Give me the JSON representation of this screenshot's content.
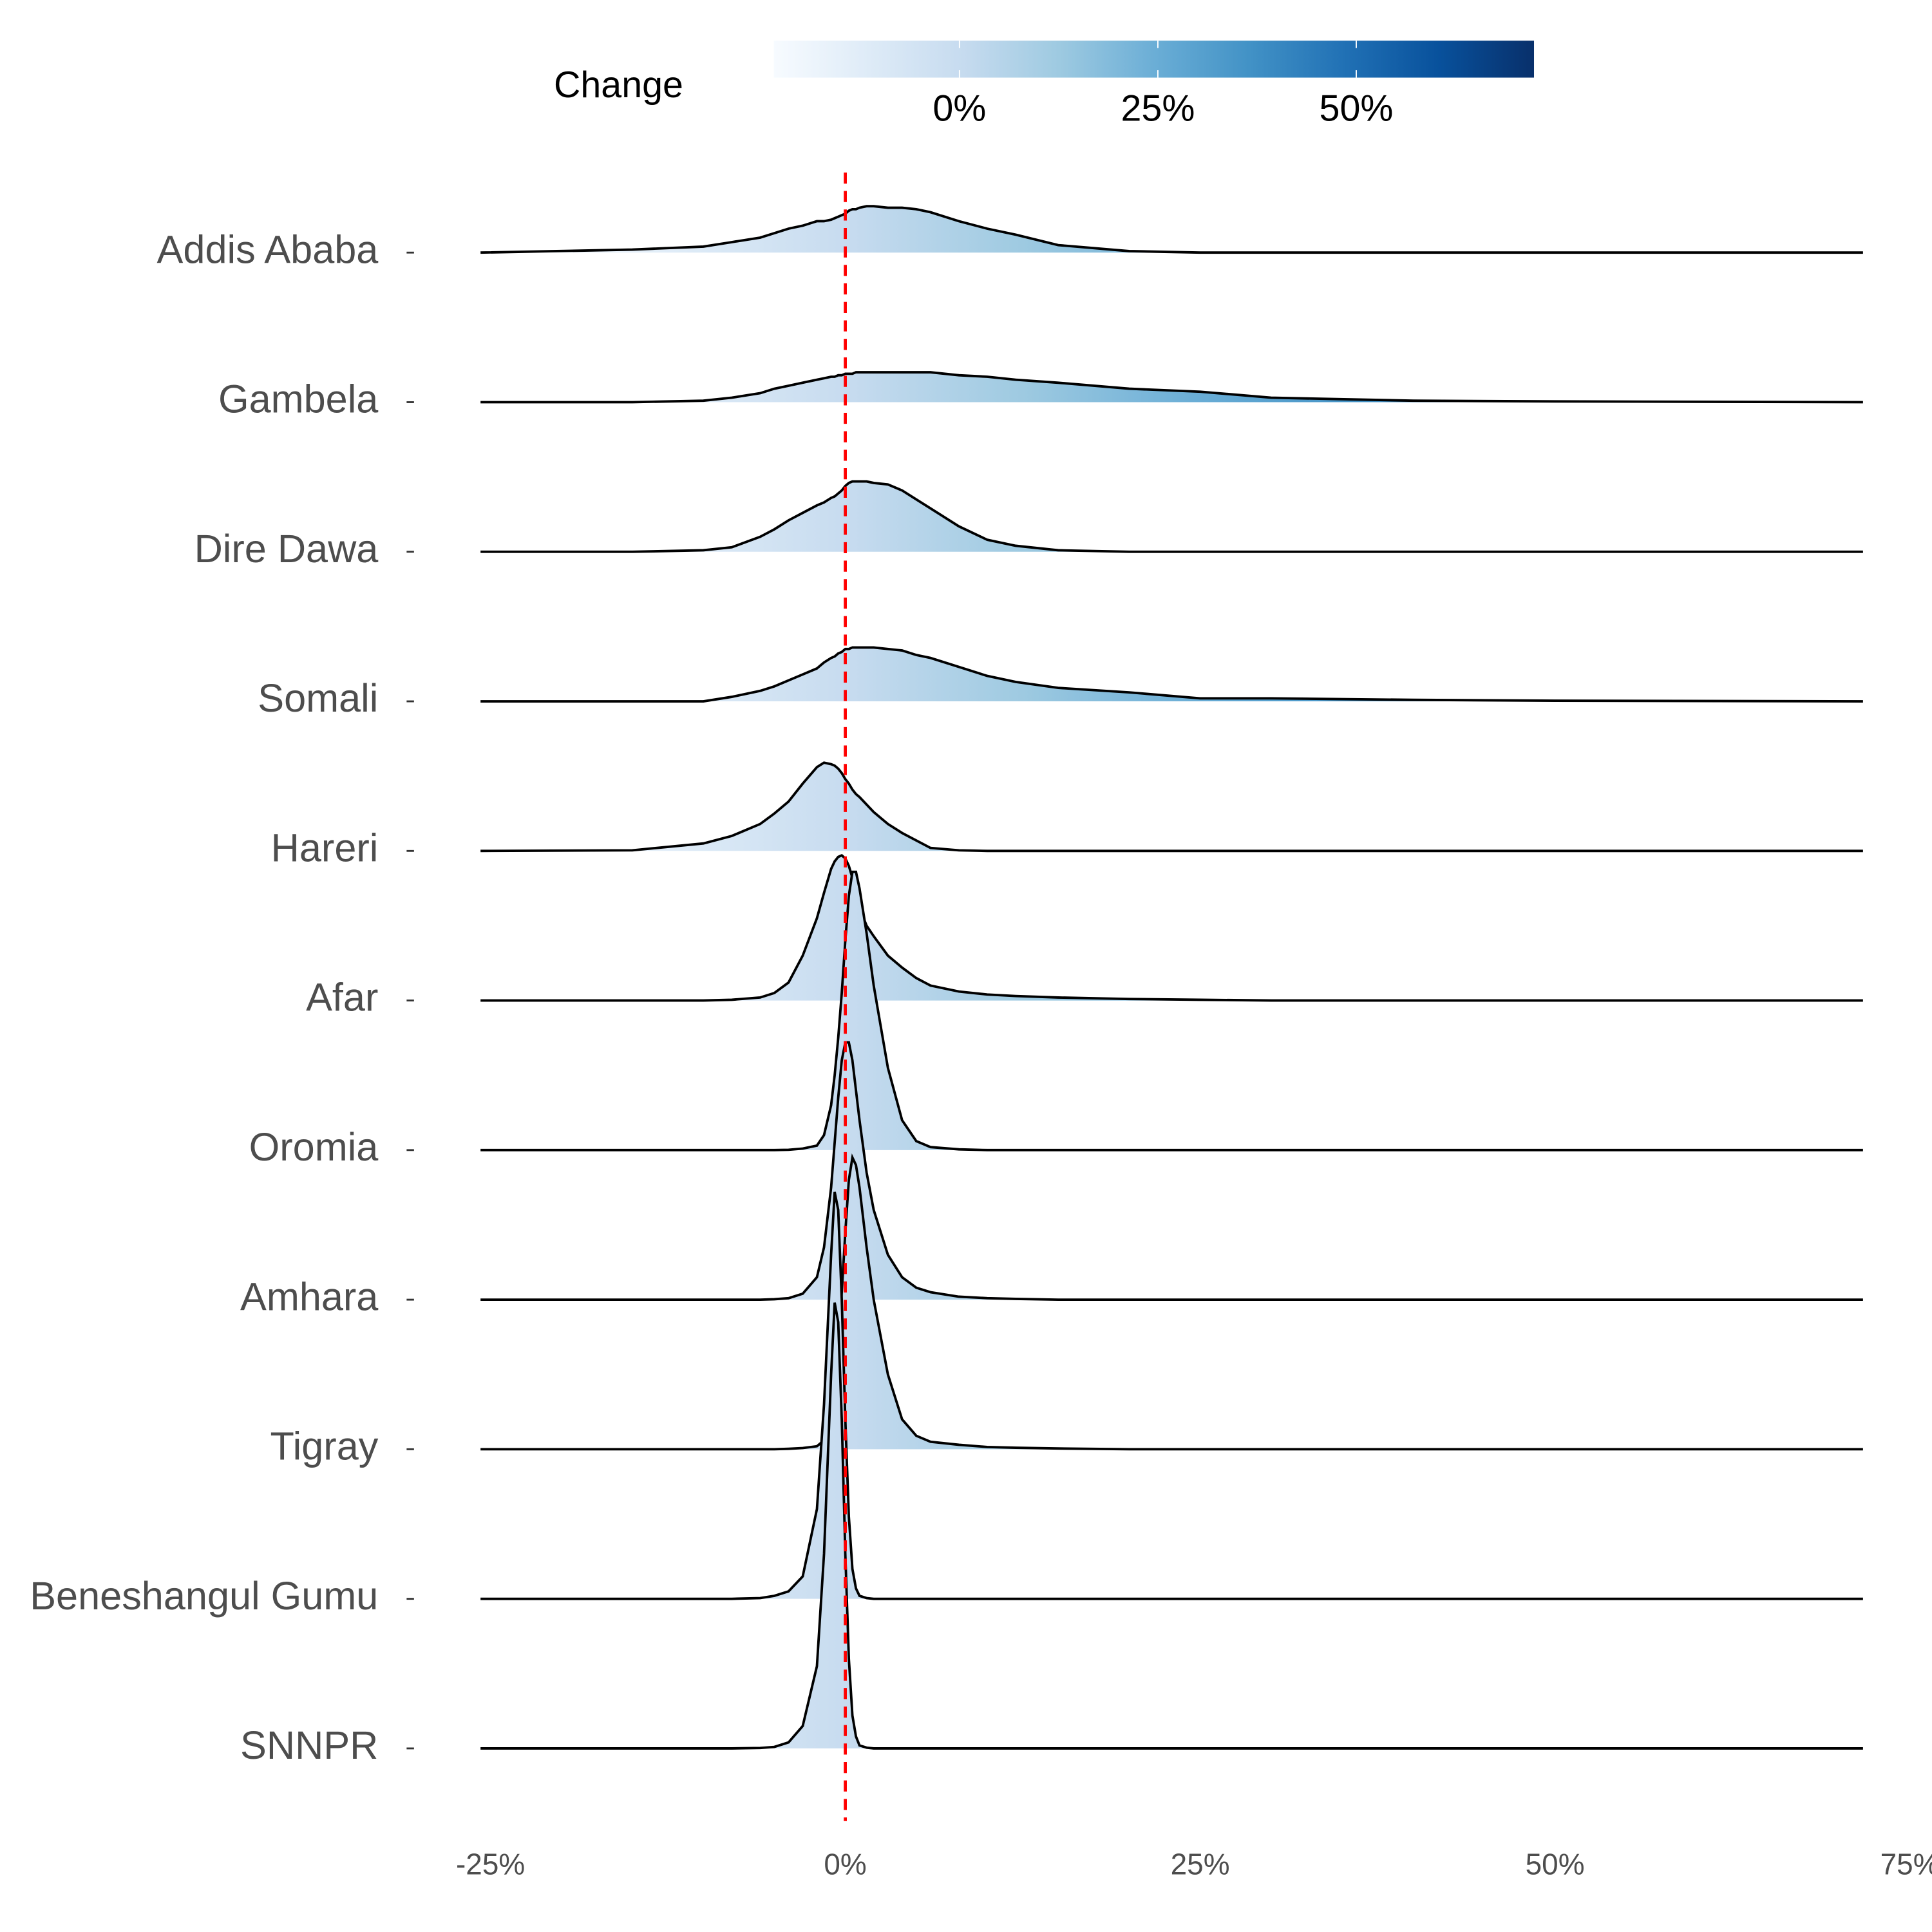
{
  "chart_data": {
    "type": "ridgeline",
    "legend_title": "Change",
    "colorscale": [
      "#f7fbff",
      "#deebf7",
      "#c6dbef",
      "#9ecae1",
      "#6baed6",
      "#4292c6",
      "#2171b5",
      "#08519c",
      "#08306b"
    ],
    "colorbar_lim": [
      -23.4,
      72.4
    ],
    "colorbar_ticks": [
      {
        "value": 0,
        "label": "0%"
      },
      {
        "value": 25,
        "label": "25%"
      },
      {
        "value": 50,
        "label": "50%"
      }
    ],
    "xlim": [
      -25.7,
      71.7
    ],
    "xticks": [
      {
        "value": -25,
        "label": "-25%"
      },
      {
        "value": 0,
        "label": "0%"
      },
      {
        "value": 25,
        "label": "25%"
      },
      {
        "value": 50,
        "label": "50%"
      },
      {
        "value": 75,
        "label": "75%"
      }
    ],
    "reference_line": {
      "x": 0,
      "color": "#ff0000"
    },
    "x": [
      -25.7,
      -15,
      -10,
      -8,
      -6,
      -5,
      -4,
      -3,
      -2,
      -1.5,
      -1,
      -0.75,
      -0.5,
      -0.25,
      0,
      0.25,
      0.5,
      0.75,
      1,
      1.5,
      2,
      3,
      4,
      5,
      6,
      8,
      10,
      12,
      15,
      20,
      25,
      30,
      40,
      50,
      71.7
    ],
    "series": [
      {
        "name": "Addis Ababa",
        "values": [
          0,
          0.02,
          0.04,
          0.07,
          0.1,
          0.13,
          0.16,
          0.18,
          0.21,
          0.21,
          0.22,
          0.23,
          0.24,
          0.25,
          0.26,
          0.28,
          0.29,
          0.29,
          0.3,
          0.31,
          0.31,
          0.3,
          0.3,
          0.29,
          0.27,
          0.21,
          0.16,
          0.12,
          0.05,
          0.01,
          0,
          0,
          0,
          0,
          0
        ]
      },
      {
        "name": "Gambela",
        "values": [
          0,
          0,
          0.01,
          0.03,
          0.06,
          0.09,
          0.11,
          0.13,
          0.15,
          0.16,
          0.17,
          0.17,
          0.18,
          0.18,
          0.19,
          0.19,
          0.19,
          0.2,
          0.2,
          0.2,
          0.2,
          0.2,
          0.2,
          0.2,
          0.2,
          0.18,
          0.17,
          0.15,
          0.13,
          0.09,
          0.07,
          0.03,
          0.01,
          0.005,
          0
        ]
      },
      {
        "name": "Dire Dawa",
        "values": [
          0,
          0,
          0.01,
          0.03,
          0.1,
          0.15,
          0.21,
          0.26,
          0.31,
          0.33,
          0.36,
          0.37,
          0.39,
          0.41,
          0.44,
          0.46,
          0.47,
          0.47,
          0.47,
          0.47,
          0.46,
          0.45,
          0.41,
          0.35,
          0.29,
          0.17,
          0.08,
          0.04,
          0.01,
          0,
          0,
          0,
          0,
          0,
          0
        ]
      },
      {
        "name": "Somali",
        "values": [
          0,
          0,
          0,
          0.03,
          0.07,
          0.1,
          0.14,
          0.18,
          0.22,
          0.26,
          0.29,
          0.3,
          0.32,
          0.33,
          0.35,
          0.35,
          0.36,
          0.36,
          0.36,
          0.36,
          0.36,
          0.35,
          0.34,
          0.31,
          0.29,
          0.23,
          0.17,
          0.13,
          0.09,
          0.06,
          0.02,
          0.02,
          0.01,
          0.004,
          0
        ]
      },
      {
        "name": "Hareri",
        "values": [
          0,
          0.004,
          0.05,
          0.1,
          0.18,
          0.25,
          0.33,
          0.45,
          0.56,
          0.59,
          0.58,
          0.57,
          0.55,
          0.52,
          0.48,
          0.45,
          0.41,
          0.38,
          0.36,
          0.31,
          0.26,
          0.18,
          0.12,
          0.07,
          0.02,
          0.004,
          0,
          0,
          0,
          0,
          0,
          0,
          0,
          0,
          0
        ]
      },
      {
        "name": "Afar",
        "values": [
          0,
          0,
          0,
          0.005,
          0.02,
          0.05,
          0.12,
          0.3,
          0.55,
          0.72,
          0.88,
          0.93,
          0.96,
          0.97,
          0.95,
          0.9,
          0.82,
          0.72,
          0.62,
          0.5,
          0.43,
          0.3,
          0.22,
          0.15,
          0.1,
          0.06,
          0.04,
          0.03,
          0.02,
          0.01,
          0.005,
          0,
          0,
          0,
          0
        ]
      },
      {
        "name": "Oromia",
        "values": [
          0,
          0,
          0,
          0,
          0,
          0,
          0.002,
          0.01,
          0.03,
          0.1,
          0.3,
          0.5,
          0.75,
          1.05,
          1.4,
          1.7,
          1.86,
          1.86,
          1.75,
          1.45,
          1.1,
          0.55,
          0.2,
          0.06,
          0.02,
          0.005,
          0,
          0,
          0,
          0,
          0,
          0,
          0,
          0,
          0
        ]
      },
      {
        "name": "Amhara",
        "values": [
          0,
          0,
          0,
          0,
          0,
          0.003,
          0.01,
          0.04,
          0.15,
          0.35,
          0.75,
          1.05,
          1.35,
          1.6,
          1.72,
          1.72,
          1.6,
          1.4,
          1.2,
          0.85,
          0.6,
          0.3,
          0.15,
          0.08,
          0.05,
          0.02,
          0.01,
          0.005,
          0,
          0,
          0,
          0,
          0,
          0,
          0
        ]
      },
      {
        "name": "Tigray",
        "values": [
          0,
          0,
          0,
          0,
          0,
          0,
          0.003,
          0.008,
          0.02,
          0.06,
          0.2,
          0.4,
          0.7,
          1.05,
          1.45,
          1.8,
          1.95,
          1.9,
          1.75,
          1.35,
          1.0,
          0.5,
          0.2,
          0.09,
          0.05,
          0.03,
          0.015,
          0.01,
          0.005,
          0,
          0,
          0,
          0,
          0,
          0
        ]
      },
      {
        "name": "Beneshangul Gumu",
        "values": [
          0,
          0,
          0,
          0,
          0.005,
          0.02,
          0.05,
          0.15,
          0.6,
          1.3,
          2.3,
          2.72,
          2.6,
          2.0,
          1.2,
          0.55,
          0.2,
          0.07,
          0.02,
          0.005,
          0,
          0,
          0,
          0,
          0,
          0,
          0,
          0,
          0,
          0,
          0,
          0,
          0,
          0,
          0
        ]
      },
      {
        "name": "SNNPR",
        "values": [
          0,
          0,
          0,
          0,
          0.003,
          0.01,
          0.04,
          0.15,
          0.55,
          1.3,
          2.5,
          2.98,
          2.85,
          2.2,
          1.3,
          0.6,
          0.22,
          0.08,
          0.02,
          0.005,
          0,
          0,
          0,
          0,
          0,
          0,
          0,
          0,
          0,
          0,
          0,
          0,
          0,
          0,
          0
        ]
      }
    ]
  }
}
